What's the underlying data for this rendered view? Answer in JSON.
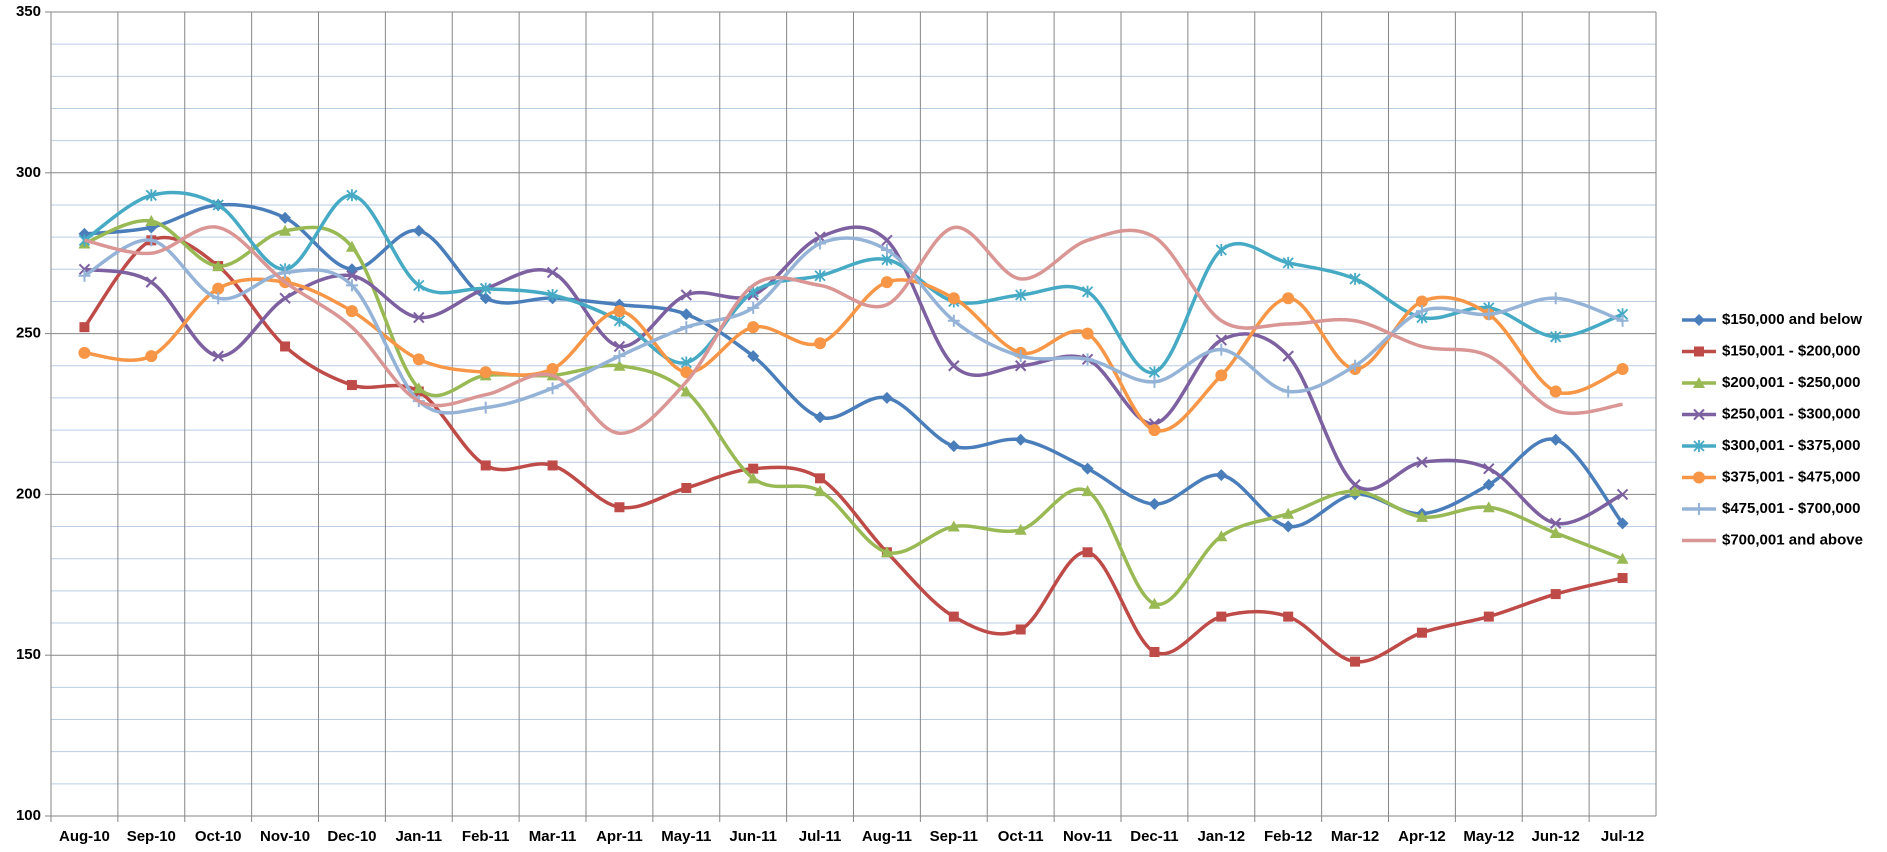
{
  "chart_data": {
    "type": "line",
    "smooth": true,
    "categories": [
      "Aug-10",
      "Sep-10",
      "Oct-10",
      "Nov-10",
      "Dec-10",
      "Jan-11",
      "Feb-11",
      "Mar-11",
      "Apr-11",
      "May-11",
      "Jun-11",
      "Jul-11",
      "Aug-11",
      "Sep-11",
      "Oct-11",
      "Nov-11",
      "Dec-11",
      "Jan-12",
      "Feb-12",
      "Mar-12",
      "Apr-12",
      "May-12",
      "Jun-12",
      "Jul-12"
    ],
    "ylim": [
      100,
      350
    ],
    "yticks": [
      100,
      150,
      200,
      250,
      300,
      350
    ],
    "minor_yticks": [
      110,
      120,
      130,
      140,
      160,
      170,
      180,
      190,
      210,
      220,
      230,
      240,
      260,
      270,
      280,
      290,
      310,
      320,
      330,
      340
    ],
    "grid": true,
    "legend": "right",
    "series": [
      {
        "name": "$150,000 and below",
        "color": "#4a7ebb",
        "marker": "diamond",
        "values": [
          281,
          283,
          290,
          286,
          270,
          282,
          261,
          261,
          259,
          256,
          243,
          224,
          230,
          215,
          217,
          208,
          197,
          206,
          190,
          200,
          194,
          203,
          217,
          191
        ]
      },
      {
        "name": "$150,001 - $200,000",
        "color": "#be4b48",
        "marker": "square",
        "values": [
          252,
          279,
          271,
          246,
          234,
          232,
          209,
          209,
          196,
          202,
          208,
          205,
          182,
          162,
          158,
          182,
          151,
          162,
          162,
          148,
          157,
          162,
          169,
          174
        ]
      },
      {
        "name": "$200,001 - $250,000",
        "color": "#98b954",
        "marker": "triangle",
        "values": [
          278,
          285,
          271,
          282,
          277,
          233,
          237,
          237,
          240,
          232,
          205,
          201,
          182,
          190,
          189,
          201,
          166,
          187,
          194,
          201,
          193,
          196,
          188,
          180
        ]
      },
      {
        "name": "$250,001 - $300,000",
        "color": "#7d60a0",
        "marker": "x",
        "values": [
          270,
          266,
          243,
          261,
          268,
          255,
          264,
          269,
          246,
          262,
          262,
          280,
          279,
          240,
          240,
          242,
          222,
          248,
          243,
          203,
          210,
          208,
          191,
          200
        ]
      },
      {
        "name": "$300,001 - $375,000",
        "color": "#46aac5",
        "marker": "star",
        "values": [
          279,
          293,
          290,
          270,
          293,
          265,
          264,
          262,
          254,
          241,
          263,
          268,
          273,
          260,
          262,
          263,
          238,
          276,
          272,
          267,
          255,
          258,
          249,
          256
        ]
      },
      {
        "name": "$375,001 - $475,000",
        "color": "#f79646",
        "marker": "circle",
        "values": [
          244,
          243,
          264,
          266,
          257,
          242,
          238,
          239,
          257,
          238,
          252,
          247,
          266,
          261,
          244,
          250,
          220,
          237,
          261,
          239,
          260,
          256,
          232,
          239
        ]
      },
      {
        "name": "$475,001 - $700,000",
        "color": "#95b3d7",
        "marker": "plus",
        "values": [
          268,
          279,
          261,
          269,
          265,
          229,
          227,
          233,
          243,
          252,
          258,
          278,
          276,
          254,
          243,
          242,
          235,
          245,
          232,
          240,
          257,
          256,
          261,
          254
        ]
      },
      {
        "name": "$700,001 and above",
        "color": "#d99694",
        "marker": "none",
        "values": [
          279,
          275,
          283,
          266,
          252,
          229,
          231,
          237,
          219,
          235,
          265,
          265,
          259,
          283,
          267,
          279,
          280,
          254,
          253,
          254,
          246,
          243,
          226,
          228
        ]
      }
    ]
  }
}
